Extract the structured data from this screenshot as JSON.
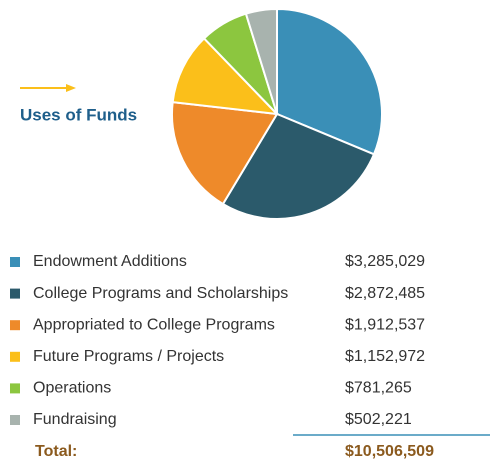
{
  "chart_data": {
    "type": "pie",
    "title": "Uses of Funds",
    "categories": [
      "Endowment Additions",
      "College Programs and Scholarships",
      "Appropriated to College Programs",
      "Future Programs / Projects",
      "Operations",
      "Fundraising"
    ],
    "values": [
      3285029,
      2872485,
      1912537,
      1152972,
      781265,
      502221
    ],
    "value_labels": [
      "$3,285,029",
      "$2,872,485",
      "$1,912,537",
      "$1,152,972",
      "$781,265",
      "$502,221"
    ],
    "colors": [
      "#3a8fb7",
      "#2b5a6b",
      "#ee8a2a",
      "#fbbf1a",
      "#8cc63f",
      "#a8b3ae"
    ],
    "total": {
      "label": "Total:",
      "value_label": "$10,506,509"
    }
  }
}
